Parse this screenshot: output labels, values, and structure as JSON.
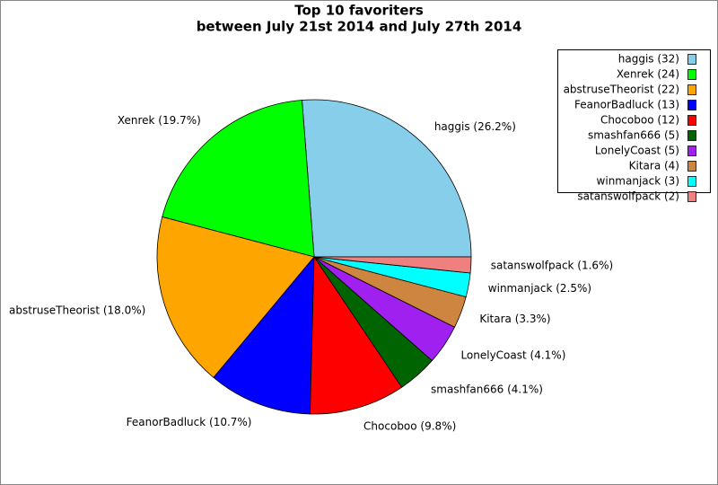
{
  "chart_data": {
    "type": "pie",
    "title": "Top 10 favoriters",
    "subtitle": "between July 21st 2014 and July 27th 2014",
    "categories": [
      "haggis",
      "Xenrek",
      "abstruseTheorist",
      "FeanorBadluck",
      "Chocoboo",
      "smashfan666",
      "LonelyCoast",
      "Kitara",
      "winmanjack",
      "satanswolfpack"
    ],
    "values": [
      32,
      24,
      22,
      13,
      12,
      5,
      5,
      4,
      3,
      2
    ],
    "legend_labels": [
      "haggis (32)",
      "Xenrek (24)",
      "abstruseTheorist (22)",
      "FeanorBadluck (13)",
      "Chocoboo (12)",
      "smashfan666 (5)",
      "LonelyCoast (5)",
      "Kitara (4)",
      "winmanjack (3)",
      "satanswolfpack (2)"
    ],
    "slice_labels": [
      "haggis (26.2%)",
      "Xenrek (19.7%)",
      "abstruseTheorist (18.0%)",
      "FeanorBadluck (10.7%)",
      "Chocoboo (9.8%)",
      "smashfan666 (4.1%)",
      "LonelyCoast (4.1%)",
      "Kitara (3.3%)",
      "winmanjack (2.5%)",
      "satanswolfpack (1.6%)"
    ],
    "colors": [
      "#87ceeb",
      "#00ff00",
      "#ffa500",
      "#0000ff",
      "#ff0000",
      "#006400",
      "#a020f0",
      "#cd853f",
      "#00ffff",
      "#f08080"
    ],
    "legend": "top-right"
  }
}
